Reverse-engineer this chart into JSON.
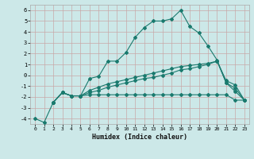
{
  "title": "",
  "xlabel": "Humidex (Indice chaleur)",
  "ylabel": "",
  "background_color": "#cce8e8",
  "grid_color": "#b8d4d4",
  "line_color": "#1a7a6e",
  "xlim": [
    -0.5,
    23.5
  ],
  "ylim": [
    -4.5,
    6.5
  ],
  "xticks": [
    0,
    1,
    2,
    3,
    4,
    5,
    6,
    7,
    8,
    9,
    10,
    11,
    12,
    13,
    14,
    15,
    16,
    17,
    18,
    19,
    20,
    21,
    22,
    23
  ],
  "yticks": [
    -4,
    -3,
    -2,
    -1,
    0,
    1,
    2,
    3,
    4,
    5,
    6
  ],
  "line1_x": [
    0,
    1,
    2,
    3,
    4,
    5,
    6,
    7,
    8,
    9,
    10,
    11,
    12,
    13,
    14,
    15,
    16,
    17,
    18,
    19,
    20,
    21,
    22,
    23
  ],
  "line1_y": [
    -4.0,
    -4.35,
    -2.5,
    -1.6,
    -1.9,
    -1.9,
    -0.3,
    -0.1,
    1.3,
    1.3,
    2.1,
    3.5,
    4.4,
    5.0,
    5.0,
    5.2,
    6.0,
    4.5,
    3.9,
    2.7,
    1.4,
    -0.7,
    -1.5,
    -2.3
  ],
  "line2_x": [
    2,
    3,
    4,
    5,
    6,
    7,
    8,
    9,
    10,
    11,
    12,
    13,
    14,
    15,
    16,
    17,
    18,
    19,
    20,
    21,
    22,
    23
  ],
  "line2_y": [
    -2.5,
    -1.6,
    -1.9,
    -1.9,
    -1.8,
    -1.8,
    -1.8,
    -1.8,
    -1.8,
    -1.8,
    -1.8,
    -1.8,
    -1.8,
    -1.8,
    -1.8,
    -1.8,
    -1.8,
    -1.8,
    -1.8,
    -1.8,
    -2.3,
    -2.3
  ],
  "line3_x": [
    2,
    3,
    4,
    5,
    6,
    7,
    8,
    9,
    10,
    11,
    12,
    13,
    14,
    15,
    16,
    17,
    18,
    19,
    20,
    21,
    22,
    23
  ],
  "line3_y": [
    -2.5,
    -1.6,
    -1.9,
    -1.9,
    -1.4,
    -1.1,
    -0.8,
    -0.6,
    -0.4,
    -0.2,
    0.0,
    0.2,
    0.4,
    0.6,
    0.8,
    0.9,
    1.0,
    1.1,
    1.3,
    -0.7,
    -1.2,
    -2.3
  ],
  "line4_x": [
    2,
    3,
    4,
    5,
    6,
    7,
    8,
    9,
    10,
    11,
    12,
    13,
    14,
    15,
    16,
    17,
    18,
    19,
    20,
    21,
    22,
    23
  ],
  "line4_y": [
    -2.5,
    -1.6,
    -1.9,
    -1.9,
    -1.6,
    -1.4,
    -1.1,
    -0.9,
    -0.7,
    -0.5,
    -0.3,
    -0.2,
    0.0,
    0.2,
    0.5,
    0.6,
    0.8,
    1.0,
    1.3,
    -0.5,
    -0.9,
    -2.3
  ]
}
